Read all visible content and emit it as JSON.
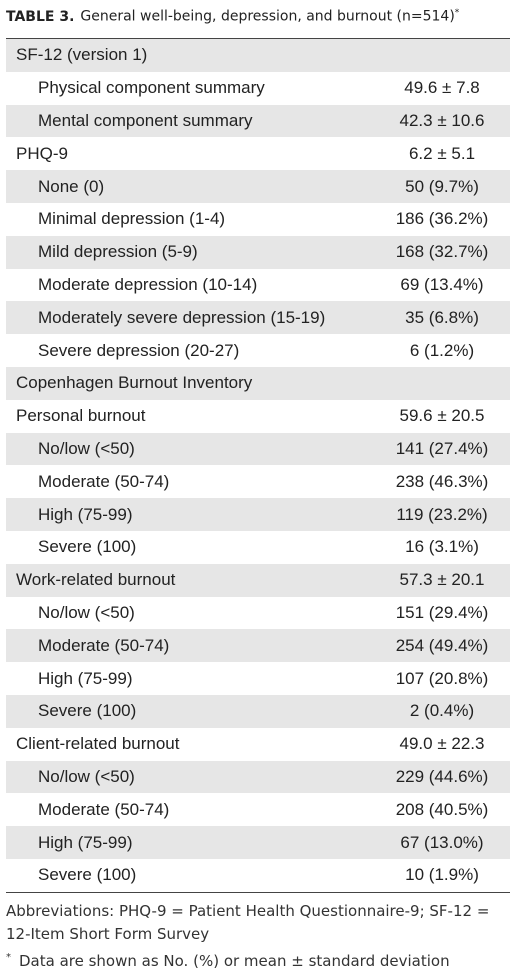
{
  "title": {
    "label": "TABLE 3.",
    "text": "General well-being, depression, and burnout (n=514)",
    "marker": "*"
  },
  "table": {
    "sections": [
      {
        "label": "SF-12 (version 1)",
        "items": [
          {
            "label": "Physical component summary",
            "value": "49.6 ± 7.8"
          },
          {
            "label": "Mental component summary",
            "value": "42.3 ± 10.6"
          }
        ]
      },
      {
        "label": "PHQ-9",
        "value": "6.2 ± 5.1",
        "items": [
          {
            "label": "None (0)",
            "value": "50 (9.7%)"
          },
          {
            "label": "Minimal depression (1-4)",
            "value": "186 (36.2%)"
          },
          {
            "label": "Mild depression (5-9)",
            "value": "168 (32.7%)"
          },
          {
            "label": "Moderate depression (10-14)",
            "value": "69 (13.4%)"
          },
          {
            "label": "Moderately severe depression (15-19)",
            "value": "35 (6.8%)"
          },
          {
            "label": "Severe depression (20-27)",
            "value": "6 (1.2%)"
          }
        ]
      },
      {
        "label": "Copenhagen Burnout Inventory"
      },
      {
        "label": "Personal burnout",
        "value": "59.6 ± 20.5",
        "items": [
          {
            "label": "No/low (<50)",
            "value": "141 (27.4%)"
          },
          {
            "label": "Moderate (50-74)",
            "value": "238 (46.3%)"
          },
          {
            "label": "High (75-99)",
            "value": "119 (23.2%)"
          },
          {
            "label": "Severe (100)",
            "value": "16 (3.1%)"
          }
        ]
      },
      {
        "label": "Work-related burnout",
        "value": "57.3 ± 20.1",
        "items": [
          {
            "label": "No/low (<50)",
            "value": "151 (29.4%)"
          },
          {
            "label": "Moderate (50-74)",
            "value": "254 (49.4%)"
          },
          {
            "label": "High (75-99)",
            "value": "107 (20.8%)"
          },
          {
            "label": "Severe (100)",
            "value": "2 (0.4%)"
          }
        ]
      },
      {
        "label": "Client-related burnout",
        "value": "49.0 ± 22.3",
        "items": [
          {
            "label": "No/low (<50)",
            "value": "229 (44.6%)"
          },
          {
            "label": "Moderate (50-74)",
            "value": "208 (40.5%)"
          },
          {
            "label": "High (75-99)",
            "value": "67 (13.0%)"
          },
          {
            "label": "Severe (100)",
            "value": "10 (1.9%)"
          }
        ]
      }
    ]
  },
  "notes": {
    "abbreviations": "Abbreviations: PHQ-9 = Patient Health Questionnaire-9; SF-12 = 12-Item Short Form Survey",
    "footnote": {
      "marker": "*",
      "text": "Data are shown as No. (%) or mean ± standard deviation"
    }
  }
}
